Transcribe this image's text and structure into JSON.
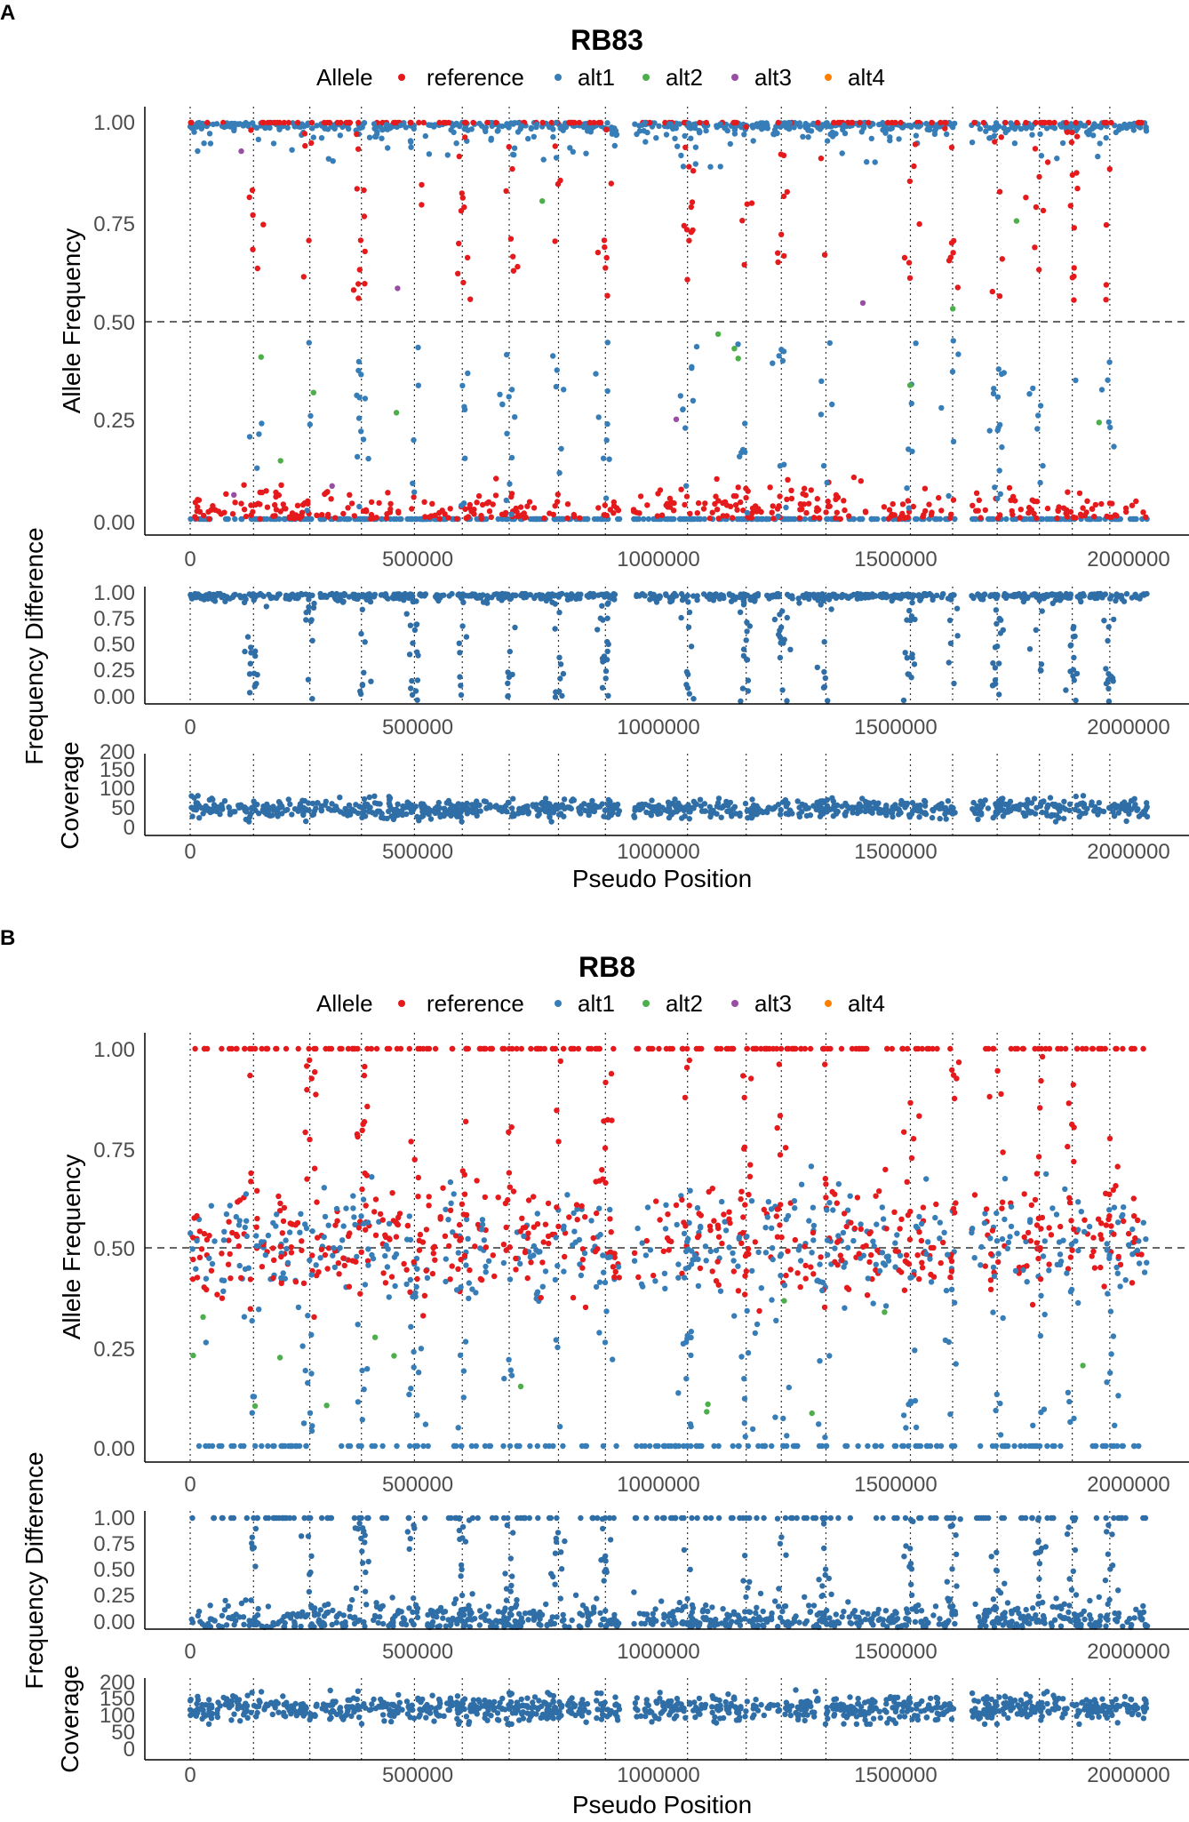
{
  "figure": {
    "legend": {
      "title": "Allele",
      "entries": [
        {
          "name": "reference",
          "color": "#E41A1C"
        },
        {
          "name": "alt1",
          "color": "#377EB8"
        },
        {
          "name": "alt2",
          "color": "#4DAF4A"
        },
        {
          "name": "alt3",
          "color": "#984EA3"
        },
        {
          "name": "alt4",
          "color": "#FF7F00"
        }
      ]
    },
    "x_tick_labels": [
      "0",
      "500000",
      "1000000",
      "1500000",
      "2000000"
    ],
    "y_af_tick_labels": [
      "0.00",
      "0.25",
      "0.50",
      "0.75",
      "1.00"
    ],
    "y_cov_tick_labels_a": [
      "0",
      "50",
      "100",
      "150",
      "200"
    ],
    "y_cov_tick_labels_b": [
      "0",
      "50",
      "100",
      "150",
      "200"
    ]
  },
  "chart_data": [
    {
      "panel": "A",
      "title": "RB83",
      "type": "scatter",
      "xlabel": "Pseudo Position",
      "xlim": [
        -100000,
        2100000
      ],
      "x_ticks": [
        0,
        500000,
        1000000,
        1500000,
        2000000
      ],
      "contig_boundaries": [
        0,
        135000,
        255000,
        365000,
        478000,
        580000,
        680000,
        785000,
        885000,
        1060000,
        1185000,
        1260000,
        1355000,
        1535000,
        1625000,
        1720000,
        1810000,
        1880000,
        1960000
      ],
      "gaps": [
        [
          915000,
          945000
        ],
        [
          1630000,
          1665000
        ]
      ],
      "x_end": 2040000,
      "subplots": [
        {
          "name": "allele_frequency",
          "ylabel": "Allele Frequency",
          "ylim": [
            0,
            1
          ],
          "y_ticks": [
            0,
            0.25,
            0.5,
            0.75,
            1
          ],
          "reference_line": 0.5,
          "pattern": "clonal (near 0 and 1) with scattered intermediate frequencies"
        },
        {
          "name": "frequency_difference",
          "ylabel": "Frequency Difference",
          "ylim": [
            0,
            1
          ],
          "y_ticks": [
            0,
            0.25,
            0.5,
            0.75,
            1
          ],
          "pattern": "mostly near 1.00"
        },
        {
          "name": "coverage",
          "ylabel": "Coverage",
          "ylim": [
            0,
            200
          ],
          "y_ticks": [
            0,
            50,
            100,
            150,
            200
          ],
          "mean_coverage": 62,
          "coverage_range": [
            30,
            95
          ]
        }
      ]
    },
    {
      "panel": "B",
      "title": "RB8",
      "type": "scatter",
      "xlabel": "Pseudo Position",
      "xlim": [
        -100000,
        2100000
      ],
      "x_ticks": [
        0,
        500000,
        1000000,
        1500000,
        2000000
      ],
      "contig_boundaries": [
        0,
        135000,
        255000,
        365000,
        478000,
        580000,
        680000,
        785000,
        885000,
        1060000,
        1185000,
        1260000,
        1355000,
        1535000,
        1625000,
        1720000,
        1810000,
        1880000,
        1960000
      ],
      "gaps": [
        [
          915000,
          945000
        ],
        [
          1630000,
          1665000
        ]
      ],
      "x_end": 2040000,
      "subplots": [
        {
          "name": "allele_frequency",
          "ylabel": "Allele Frequency",
          "ylim": [
            0,
            1
          ],
          "y_ticks": [
            0,
            0.25,
            0.5,
            0.75,
            1
          ],
          "reference_line": 0.5,
          "pattern": "heterozygous cloud centred at 0.50 with reference/alt bands at 0 and 1"
        },
        {
          "name": "frequency_difference",
          "ylabel": "Frequency Difference",
          "ylim": [
            0,
            1
          ],
          "y_ticks": [
            0,
            0.25,
            0.5,
            0.75,
            1
          ],
          "pattern": "mostly near 0.00–0.25 with bands at 1.00"
        },
        {
          "name": "coverage",
          "ylabel": "Coverage",
          "ylim": [
            0,
            200
          ],
          "y_ticks": [
            0,
            50,
            100,
            150,
            200
          ],
          "mean_coverage": 125,
          "coverage_range": [
            85,
            170
          ]
        }
      ]
    }
  ]
}
